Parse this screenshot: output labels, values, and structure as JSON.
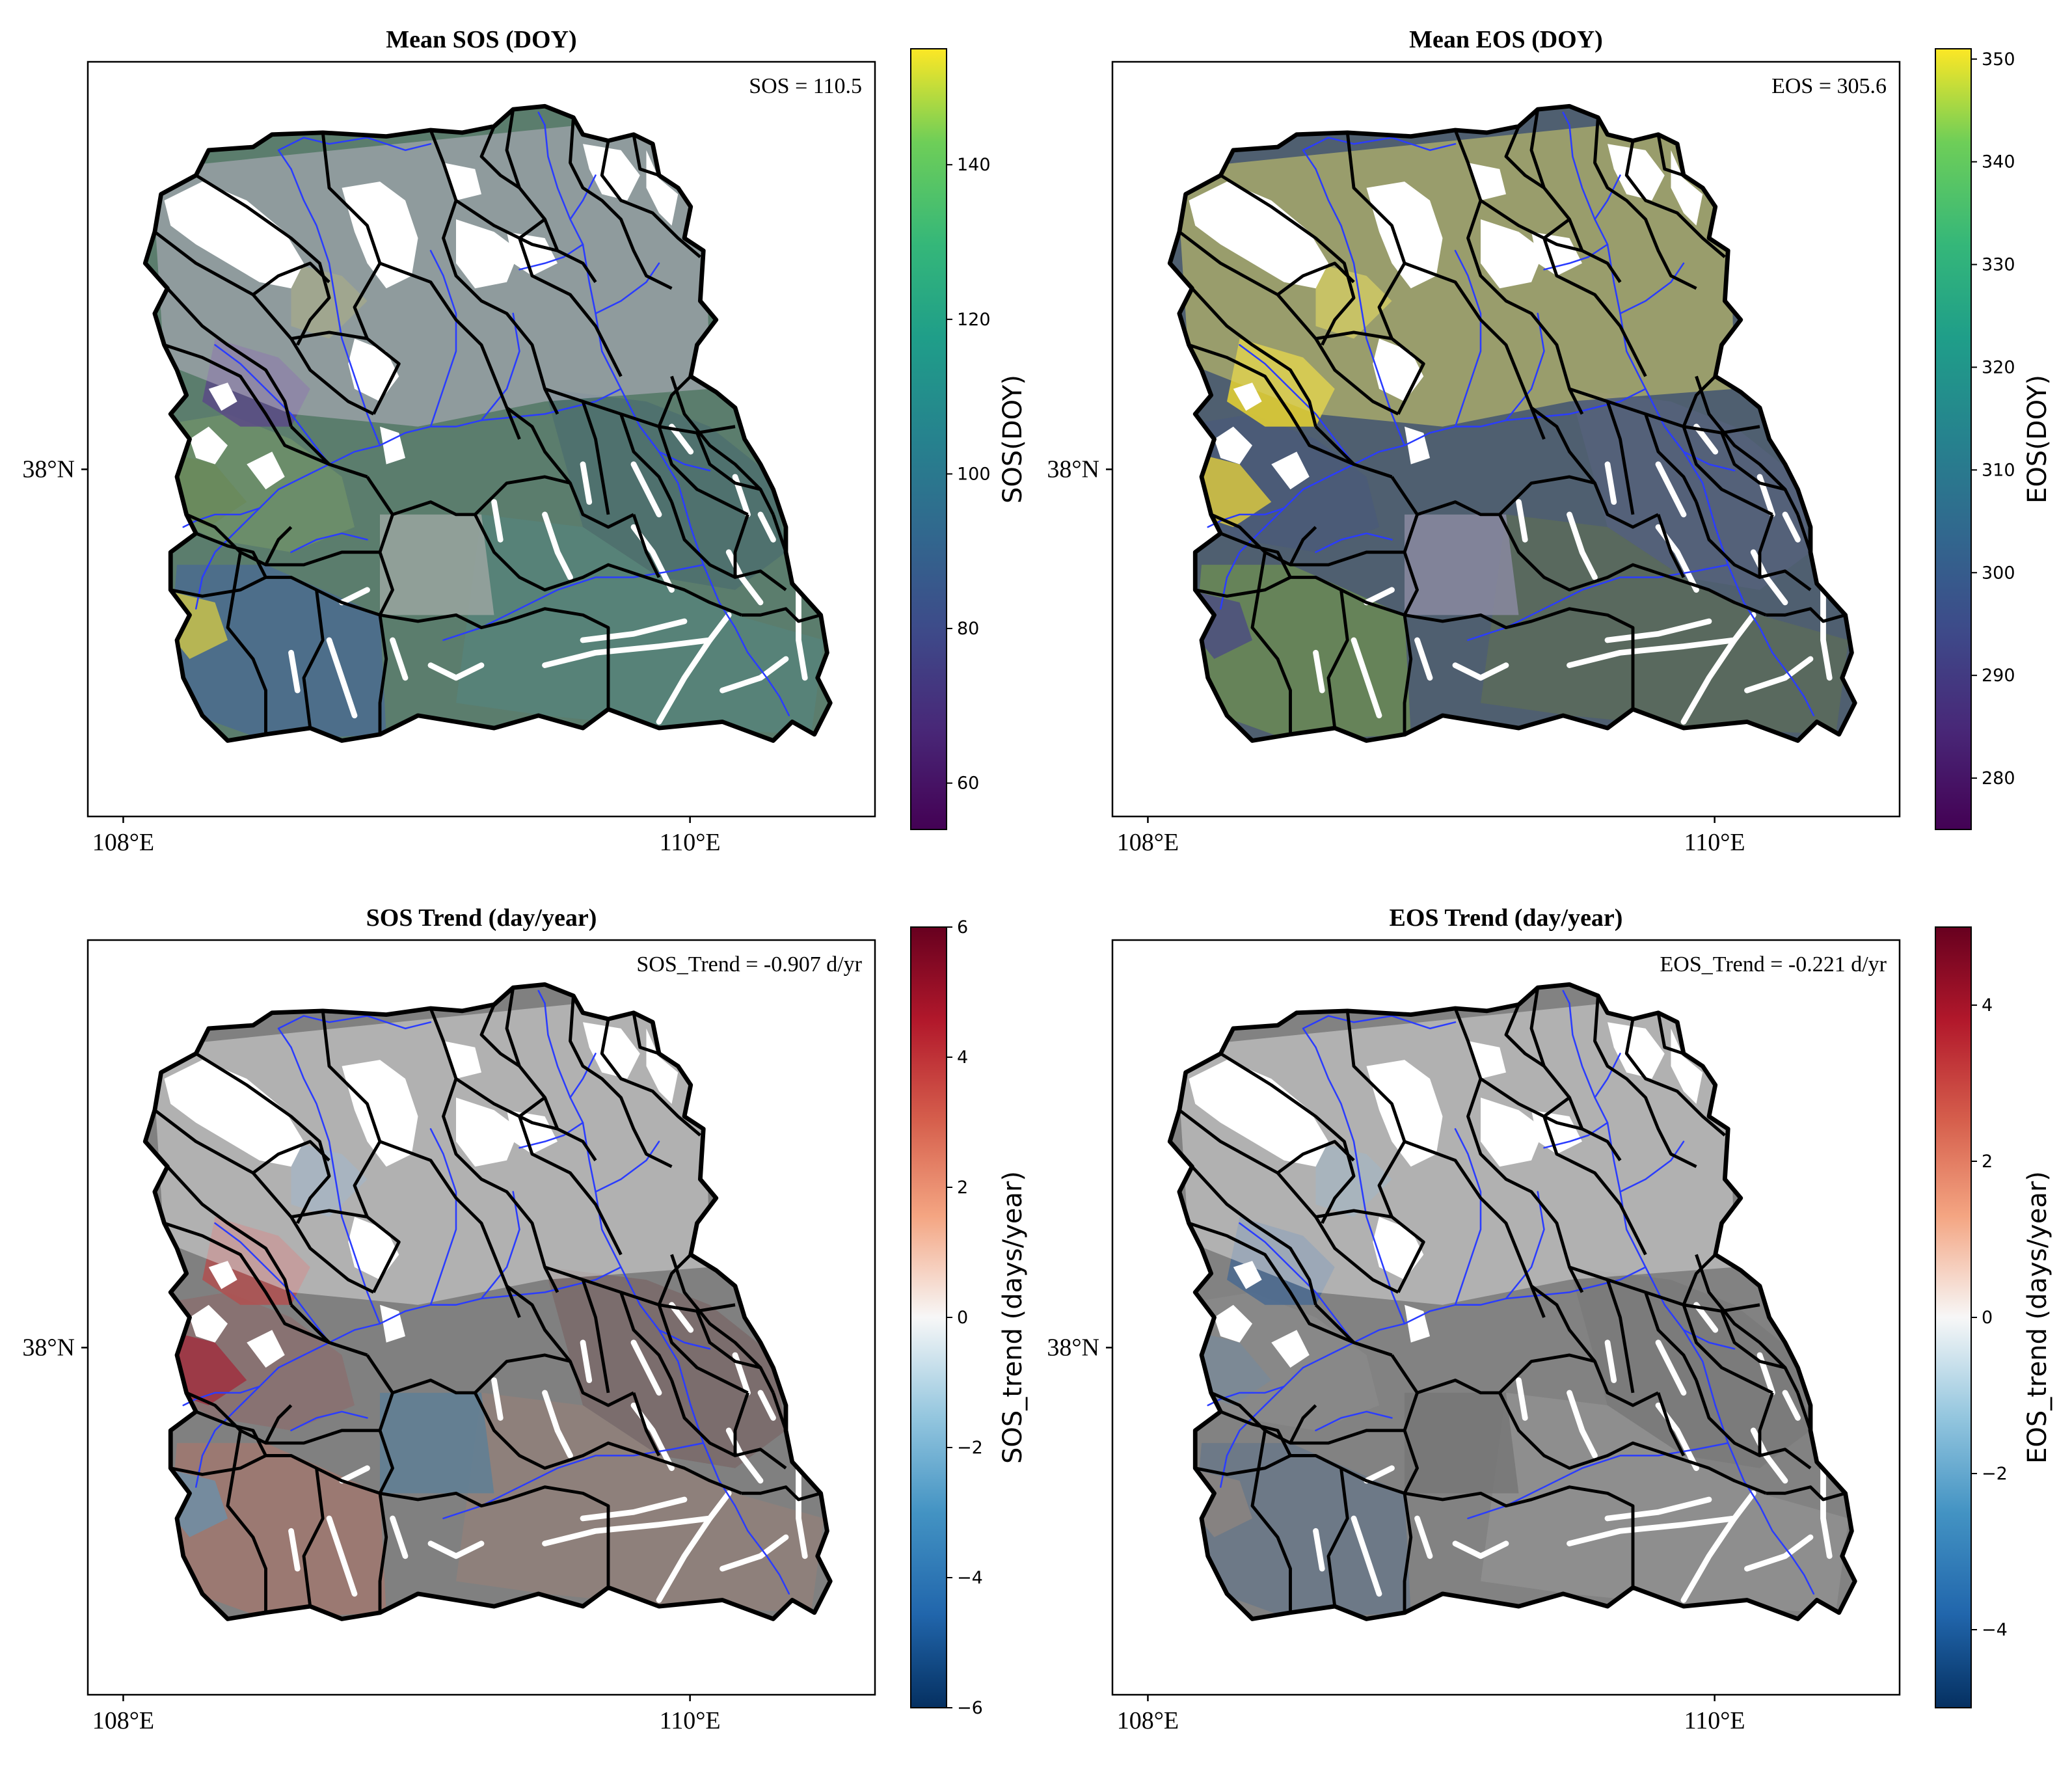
{
  "panels": [
    {
      "id": "mean-sos",
      "title": "Mean SOS (DOY)",
      "annotation": "SOS = 110.5",
      "colorbar": {
        "label": "SOS(DOY)",
        "colormap": "viridis",
        "vmin": 54,
        "vmax": 155,
        "ticks": [
          "140",
          "120",
          "100",
          "80",
          "60"
        ],
        "tick_values": [
          140,
          120,
          100,
          80,
          60
        ]
      },
      "y_tick": "38°N",
      "x_ticks": [
        "108°E",
        "110°E"
      ]
    },
    {
      "id": "mean-eos",
      "title": "Mean EOS (DOY)",
      "annotation": "EOS = 305.6",
      "colorbar": {
        "label": "EOS(DOY)",
        "colormap": "viridis",
        "vmin": 275,
        "vmax": 351,
        "ticks": [
          "350",
          "340",
          "330",
          "320",
          "310",
          "300",
          "290",
          "280"
        ],
        "tick_values": [
          350,
          340,
          330,
          320,
          310,
          300,
          290,
          280
        ]
      },
      "y_tick": "38°N",
      "x_ticks": [
        "108°E",
        "110°E"
      ]
    },
    {
      "id": "sos-trend",
      "title": "SOS Trend (day/year)",
      "annotation": "SOS_Trend = -0.907 d/yr",
      "colorbar": {
        "label": "SOS_trend (days/year)",
        "colormap": "RdBu_r",
        "vmin": -6,
        "vmax": 6,
        "ticks": [
          "6",
          "4",
          "2",
          "0",
          "−2",
          "−4",
          "−6"
        ],
        "tick_values": [
          6,
          4,
          2,
          0,
          -2,
          -4,
          -6
        ]
      },
      "y_tick": "38°N",
      "x_ticks": [
        "108°E",
        "110°E"
      ]
    },
    {
      "id": "eos-trend",
      "title": "EOS Trend (day/year)",
      "annotation": "EOS_Trend = -0.221 d/yr",
      "colorbar": {
        "label": "EOS_trend (days/year)",
        "colormap": "RdBu_r",
        "vmin": -5,
        "vmax": 5,
        "ticks": [
          "4",
          "2",
          "0",
          "−2",
          "−4"
        ],
        "tick_values": [
          4,
          2,
          0,
          -2,
          -4
        ]
      },
      "y_tick": "38°N",
      "x_ticks": [
        "108°E",
        "110°E"
      ]
    }
  ],
  "colors": {
    "boundary": "#000000",
    "river": "#2a3cff",
    "mean_sos_main": "#55806a",
    "mean_eos_main": "#4f5f6e",
    "sos_trend_main": "#7a7a7a",
    "eos_trend_main": "#7d7d7d"
  }
}
